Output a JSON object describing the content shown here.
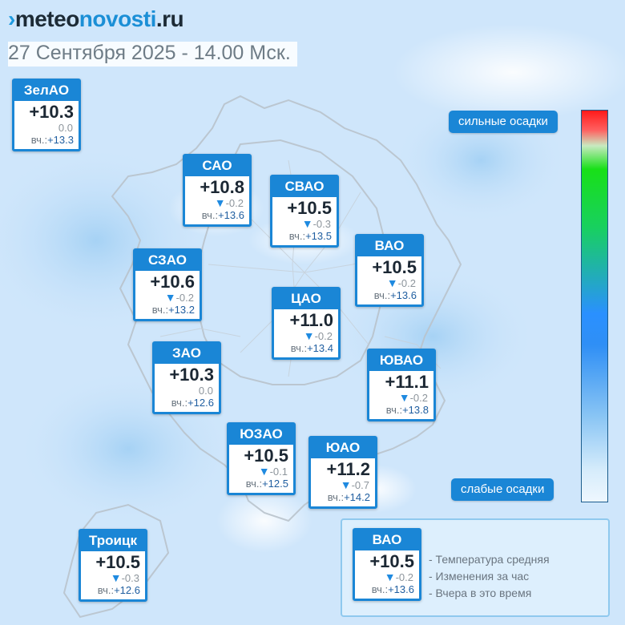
{
  "header": {
    "brand_mark": "›",
    "brand_meteo": "meteo",
    "brand_novosti": "novosti",
    "brand_tld": ".ru",
    "date_line": "27 Сентября 2025 - 14.00 Мск."
  },
  "yesterday_label": "вч.:",
  "districts": [
    {
      "key": "zelao",
      "name": "ЗелАО",
      "temp": "+10.3",
      "change": "0.0",
      "change_dir": "none",
      "yesterday": "+13.3"
    },
    {
      "key": "sao",
      "name": "САО",
      "temp": "+10.8",
      "change": "-0.2",
      "change_dir": "down",
      "yesterday": "+13.6"
    },
    {
      "key": "svao",
      "name": "СВАО",
      "temp": "+10.5",
      "change": "-0.3",
      "change_dir": "down",
      "yesterday": "+13.5"
    },
    {
      "key": "vao",
      "name": "ВАО",
      "temp": "+10.5",
      "change": "-0.2",
      "change_dir": "down",
      "yesterday": "+13.6"
    },
    {
      "key": "szao",
      "name": "СЗАО",
      "temp": "+10.6",
      "change": "-0.2",
      "change_dir": "down",
      "yesterday": "+13.2"
    },
    {
      "key": "tsao",
      "name": "ЦАО",
      "temp": "+11.0",
      "change": "-0.2",
      "change_dir": "down",
      "yesterday": "+13.4"
    },
    {
      "key": "zao",
      "name": "ЗАО",
      "temp": "+10.3",
      "change": "0.0",
      "change_dir": "none",
      "yesterday": "+12.6"
    },
    {
      "key": "yuvao",
      "name": "ЮВАО",
      "temp": "+11.1",
      "change": "-0.2",
      "change_dir": "down",
      "yesterday": "+13.8"
    },
    {
      "key": "yuzao",
      "name": "ЮЗАО",
      "temp": "+10.5",
      "change": "-0.1",
      "change_dir": "down",
      "yesterday": "+12.5"
    },
    {
      "key": "yuao",
      "name": "ЮАО",
      "temp": "+11.2",
      "change": "-0.7",
      "change_dir": "down",
      "yesterday": "+14.2"
    },
    {
      "key": "troitsk",
      "name": "Троицк",
      "temp": "+10.5",
      "change": "-0.3",
      "change_dir": "down",
      "yesterday": "+12.6"
    }
  ],
  "precip_scale": {
    "high_label": "сильные осадки",
    "low_label": "слабые осадки",
    "colors": [
      "#ff1a1a",
      "#18e018",
      "#2a90ff",
      "#eef7fe"
    ]
  },
  "legend": {
    "sample": {
      "name": "ВАО",
      "temp": "+10.5",
      "change": "-0.2",
      "change_dir": "down",
      "yesterday": "+13.6"
    },
    "line_temp": "- Температура средняя",
    "line_change": "- Изменения за час",
    "line_yesterday": "- Вчера в это время"
  }
}
